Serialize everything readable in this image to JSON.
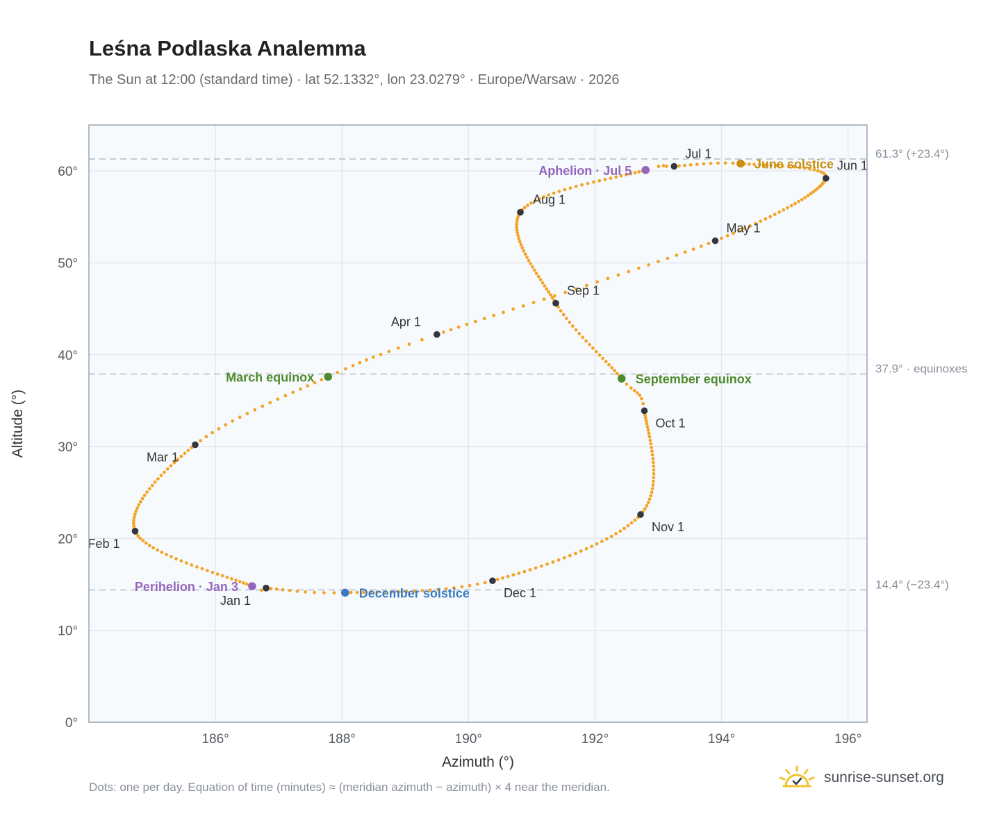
{
  "title": "Leśna Podlaska Analemma",
  "subtitle": "The Sun at 12:00 (standard time) · lat 52.1332°, lon 23.0279° · Europe/Warsaw · 2026",
  "footnote": "Dots: one per day. Equation of time (minutes) ≈ (meridian azimuth − azimuth) × 4 near the meridian.",
  "brand": {
    "name": "sunrise-sunset.org",
    "icon": "sun-logo-icon"
  },
  "colors": {
    "curve": "#f2a428",
    "month_marker": "#33373d",
    "equinox": "#4f8a2e",
    "december_solstice": "#3a7bbf",
    "june_solstice": "#c98e12",
    "apsis": "#9467bd",
    "plot_bg": "#f7fafc",
    "grid": "#e3e8ee",
    "reference_line": "#b9c2cc"
  },
  "chart_data": {
    "type": "scatter",
    "title": "Leśna Podlaska Analemma",
    "xlabel": "Azimuth (°)",
    "ylabel": "Altitude (°)",
    "xlim": [
      184.0,
      196.3
    ],
    "ylim": [
      0,
      65
    ],
    "x_ticks": [
      {
        "value": 186,
        "label": "186°"
      },
      {
        "value": 188,
        "label": "188°"
      },
      {
        "value": 190,
        "label": "190°"
      },
      {
        "value": 192,
        "label": "192°"
      },
      {
        "value": 194,
        "label": "194°"
      },
      {
        "value": 196,
        "label": "196°"
      }
    ],
    "y_ticks": [
      {
        "value": 0,
        "label": "0°"
      },
      {
        "value": 10,
        "label": "10°"
      },
      {
        "value": 20,
        "label": "20°"
      },
      {
        "value": 30,
        "label": "30°"
      },
      {
        "value": 40,
        "label": "40°"
      },
      {
        "value": 50,
        "label": "50°"
      },
      {
        "value": 60,
        "label": "60°"
      }
    ],
    "grid": true,
    "reference_lines": [
      {
        "y": 61.3,
        "label": "61.3° (+23.4°)"
      },
      {
        "y": 37.9,
        "label": "37.9° · equinoxes"
      },
      {
        "y": 14.4,
        "label": "14.4° (−23.4°)"
      }
    ],
    "anchors": [
      {
        "day": 1,
        "az": 186.8,
        "alt": 14.6
      },
      {
        "day": 3,
        "az": 186.58,
        "alt": 14.8
      },
      {
        "day": 32,
        "az": 184.73,
        "alt": 20.8
      },
      {
        "day": 60,
        "az": 185.68,
        "alt": 30.2
      },
      {
        "day": 79,
        "az": 187.78,
        "alt": 37.6
      },
      {
        "day": 91,
        "az": 189.5,
        "alt": 42.2
      },
      {
        "day": 121,
        "az": 193.9,
        "alt": 52.4
      },
      {
        "day": 152,
        "az": 195.65,
        "alt": 59.2
      },
      {
        "day": 172,
        "az": 194.3,
        "alt": 60.8
      },
      {
        "day": 182,
        "az": 193.25,
        "alt": 60.5
      },
      {
        "day": 186,
        "az": 192.8,
        "alt": 60.1
      },
      {
        "day": 213,
        "az": 190.82,
        "alt": 55.5
      },
      {
        "day": 244,
        "az": 191.38,
        "alt": 45.6
      },
      {
        "day": 266,
        "az": 192.42,
        "alt": 37.4
      },
      {
        "day": 274,
        "az": 192.78,
        "alt": 33.9
      },
      {
        "day": 305,
        "az": 192.72,
        "alt": 22.6
      },
      {
        "day": 335,
        "az": 190.38,
        "alt": 15.4
      },
      {
        "day": 355,
        "az": 188.05,
        "alt": 14.1
      },
      {
        "day": 365,
        "az": 186.8,
        "alt": 14.6
      }
    ],
    "month_markers": [
      {
        "label": "Jan 1",
        "az": 186.8,
        "alt": 14.6
      },
      {
        "label": "Feb 1",
        "az": 184.73,
        "alt": 20.8
      },
      {
        "label": "Mar 1",
        "az": 185.68,
        "alt": 30.2
      },
      {
        "label": "Apr 1",
        "az": 189.5,
        "alt": 42.2
      },
      {
        "label": "May 1",
        "az": 193.9,
        "alt": 52.4
      },
      {
        "label": "Jun 1",
        "az": 195.65,
        "alt": 59.2
      },
      {
        "label": "Jul 1",
        "az": 193.25,
        "alt": 60.5
      },
      {
        "label": "Aug 1",
        "az": 190.82,
        "alt": 55.5
      },
      {
        "label": "Sep 1",
        "az": 191.38,
        "alt": 45.6
      },
      {
        "label": "Oct 1",
        "az": 192.78,
        "alt": 33.9
      },
      {
        "label": "Nov 1",
        "az": 192.72,
        "alt": 22.6
      },
      {
        "label": "Dec 1",
        "az": 190.38,
        "alt": 15.4
      }
    ],
    "events": [
      {
        "label": "March equinox",
        "az": 187.78,
        "alt": 37.6,
        "kind": "equinox"
      },
      {
        "label": "September equinox",
        "az": 192.42,
        "alt": 37.4,
        "kind": "equinox"
      },
      {
        "label": "June solstice",
        "az": 194.3,
        "alt": 60.8,
        "kind": "june_solstice"
      },
      {
        "label": "December solstice",
        "az": 188.05,
        "alt": 14.1,
        "kind": "december_solstice"
      },
      {
        "label": "Aphelion · Jul 5",
        "az": 192.8,
        "alt": 60.1,
        "kind": "apsis"
      },
      {
        "label": "Perihelion · Jan 3",
        "az": 186.58,
        "alt": 14.8,
        "kind": "apsis"
      }
    ]
  }
}
